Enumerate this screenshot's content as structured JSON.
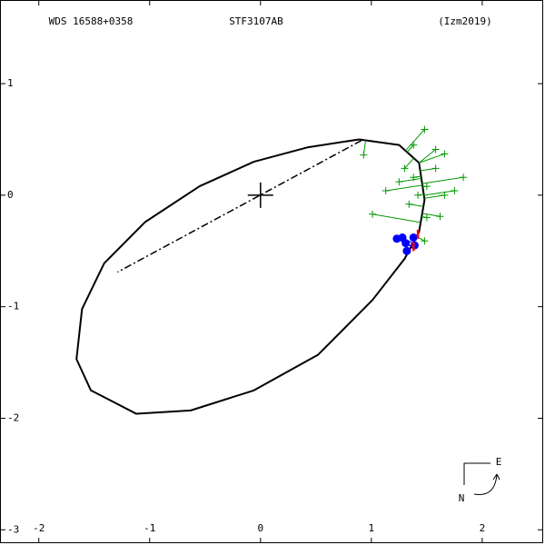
{
  "chart_data": {
    "type": "orbit",
    "title": "STF3107AB",
    "subtitle": "WDS 16588+0358",
    "annotation": "(Izm2019)",
    "compass": {
      "east": "E",
      "north": "N"
    },
    "xlim": [
      -2.35,
      2.55
    ],
    "ylim": [
      -3.12,
      1.75
    ],
    "xticks": [
      -2,
      -1,
      0,
      1,
      2
    ],
    "yticks": [
      -3,
      -2,
      -1,
      0,
      1
    ],
    "primary": {
      "x": 0,
      "y": 0
    },
    "node_line": {
      "x": [
        0.91,
        -1.29
      ],
      "y": [
        0.49,
        -0.69
      ]
    },
    "series": [
      {
        "name": "orbit",
        "color": "#000000",
        "x": [
          0.89,
          0.43,
          -0.06,
          -0.55,
          -1.04,
          -1.41,
          -1.61,
          -1.66,
          -1.53,
          -1.12,
          -0.63,
          -0.06,
          0.52,
          1.01,
          1.3,
          1.43,
          1.48,
          1.43,
          1.25,
          0.89
        ],
        "y": [
          0.5,
          0.43,
          0.3,
          0.08,
          -0.24,
          -0.61,
          -1.02,
          -1.47,
          -1.75,
          -1.96,
          -1.93,
          -1.75,
          -1.43,
          -0.94,
          -0.57,
          -0.33,
          -0.04,
          0.29,
          0.45,
          0.5
        ]
      },
      {
        "name": "micrometer",
        "color": "#009900",
        "x": [
          1.48,
          1.38,
          0.93,
          1.58,
          1.66,
          1.83,
          1.3,
          1.25,
          1.5,
          1.75,
          1.13,
          1.42,
          1.66,
          1.01,
          1.5,
          1.62,
          1.34,
          1.48,
          1.38,
          1.58
        ],
        "y": [
          0.59,
          0.45,
          0.36,
          0.41,
          0.37,
          0.16,
          0.24,
          0.12,
          0.08,
          0.04,
          0.04,
          0.0,
          0.0,
          -0.17,
          -0.2,
          -0.19,
          -0.08,
          -0.41,
          0.16,
          0.24
        ]
      },
      {
        "name": "interferometric",
        "color": "#0000ff",
        "x": [
          1.23,
          1.31,
          1.38,
          1.32,
          1.39,
          1.28
        ],
        "y": [
          -0.39,
          -0.43,
          -0.38,
          -0.5,
          -0.45,
          -0.38
        ]
      },
      {
        "name": "recent",
        "color": "#ff0000",
        "x": [
          1.42,
          1.38
        ],
        "y": [
          -0.35,
          -0.46
        ]
      }
    ]
  }
}
